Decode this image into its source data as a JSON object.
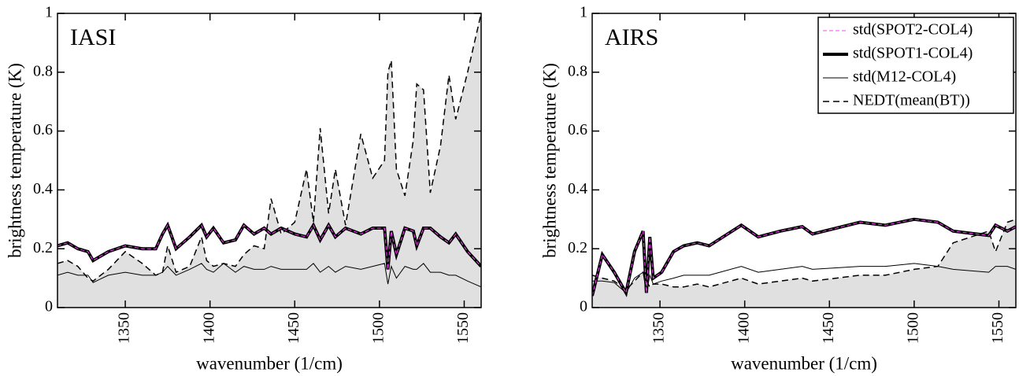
{
  "chart_data": [
    {
      "type": "line",
      "annotation": "IASI",
      "xlabel": "wavenumber (1/cm)",
      "ylabel": "brightness temperature (K)",
      "xlim": [
        1310,
        1560
      ],
      "xticks": [
        1350,
        1400,
        1450,
        1500,
        1550
      ],
      "ylim": [
        0,
        1
      ],
      "yticks": [
        0,
        0.2,
        0.4,
        0.6,
        0.8,
        1
      ],
      "x": [
        1310,
        1316,
        1322,
        1328,
        1331,
        1340,
        1350,
        1360,
        1368,
        1372,
        1375,
        1380,
        1388,
        1395,
        1398,
        1402,
        1408,
        1415,
        1420,
        1426,
        1432,
        1436,
        1442,
        1450,
        1457,
        1461,
        1465,
        1470,
        1474,
        1480,
        1489,
        1496,
        1503,
        1505,
        1507,
        1510,
        1515,
        1520,
        1522,
        1526,
        1530,
        1536,
        1541,
        1545,
        1552,
        1560
      ],
      "series": [
        {
          "color": "#ff44ff",
          "line_style": "dashed",
          "line_width": 1,
          "values": [
            0.21,
            0.22,
            0.2,
            0.19,
            0.16,
            0.19,
            0.21,
            0.2,
            0.2,
            0.25,
            0.28,
            0.2,
            0.24,
            0.28,
            0.24,
            0.27,
            0.22,
            0.23,
            0.28,
            0.25,
            0.27,
            0.25,
            0.27,
            0.25,
            0.24,
            0.28,
            0.23,
            0.28,
            0.24,
            0.27,
            0.25,
            0.27,
            0.27,
            0.13,
            0.26,
            0.18,
            0.27,
            0.26,
            0.21,
            0.27,
            0.27,
            0.24,
            0.22,
            0.25,
            0.19,
            0.14
          ]
        },
        {
          "color": "#000000",
          "line_style": "solid",
          "line_width": 4,
          "values": [
            0.21,
            0.22,
            0.2,
            0.19,
            0.16,
            0.19,
            0.21,
            0.2,
            0.2,
            0.25,
            0.28,
            0.2,
            0.24,
            0.28,
            0.24,
            0.27,
            0.22,
            0.23,
            0.28,
            0.25,
            0.27,
            0.25,
            0.27,
            0.25,
            0.24,
            0.28,
            0.23,
            0.28,
            0.24,
            0.27,
            0.25,
            0.27,
            0.27,
            0.13,
            0.26,
            0.18,
            0.27,
            0.26,
            0.21,
            0.27,
            0.27,
            0.24,
            0.22,
            0.25,
            0.19,
            0.14
          ]
        },
        {
          "color": "#000000",
          "line_style": "solid",
          "line_width": 1,
          "values": [
            0.11,
            0.12,
            0.11,
            0.11,
            0.085,
            0.11,
            0.12,
            0.11,
            0.11,
            0.12,
            0.14,
            0.11,
            0.13,
            0.15,
            0.13,
            0.12,
            0.15,
            0.12,
            0.14,
            0.13,
            0.13,
            0.14,
            0.13,
            0.13,
            0.13,
            0.15,
            0.12,
            0.14,
            0.12,
            0.14,
            0.13,
            0.14,
            0.15,
            0.08,
            0.14,
            0.1,
            0.14,
            0.13,
            0.13,
            0.15,
            0.12,
            0.12,
            0.11,
            0.11,
            0.09,
            0.07
          ]
        },
        {
          "color": "#000000",
          "line_style": "dashed",
          "line_width": 1.5,
          "fill": "#e0e0e0",
          "values": [
            0.15,
            0.16,
            0.14,
            0.1,
            0.09,
            0.13,
            0.19,
            0.15,
            0.11,
            0.12,
            0.21,
            0.12,
            0.14,
            0.24,
            0.16,
            0.14,
            0.15,
            0.14,
            0.18,
            0.21,
            0.2,
            0.37,
            0.25,
            0.29,
            0.47,
            0.29,
            0.61,
            0.32,
            0.47,
            0.28,
            0.59,
            0.44,
            0.5,
            0.8,
            0.84,
            0.47,
            0.38,
            0.57,
            0.76,
            0.74,
            0.39,
            0.55,
            0.79,
            0.64,
            0.8,
            1
          ]
        }
      ]
    },
    {
      "type": "line",
      "annotation": "AIRS",
      "xlabel": "wavenumber (1/cm)",
      "ylabel": "brightness temperature (K)",
      "xlim": [
        1310,
        1560
      ],
      "xticks": [
        1350,
        1400,
        1450,
        1500,
        1550
      ],
      "ylim": [
        0,
        1
      ],
      "yticks": [
        0,
        0.2,
        0.4,
        0.6,
        0.8,
        1
      ],
      "legend": "upper right",
      "x": [
        1310,
        1316,
        1323,
        1330,
        1335,
        1340,
        1342,
        1344,
        1346,
        1351,
        1358,
        1364,
        1372,
        1379,
        1398,
        1408,
        1421,
        1434,
        1440,
        1468,
        1483,
        1500,
        1514,
        1523,
        1544,
        1548,
        1555,
        1560
      ],
      "series": [
        {
          "name": "std(SPOT2-COL4)",
          "color": "#ff44ff",
          "line_style": "dashed",
          "line_width": 1,
          "values": [
            0.04,
            0.18,
            0.12,
            0.05,
            0.19,
            0.26,
            0.05,
            0.24,
            0.1,
            0.12,
            0.19,
            0.21,
            0.22,
            0.21,
            0.28,
            0.24,
            0.26,
            0.275,
            0.25,
            0.29,
            0.28,
            0.3,
            0.29,
            0.26,
            0.245,
            0.28,
            0.26,
            0.275
          ]
        },
        {
          "name": "std(SPOT1-COL4)",
          "color": "#000000",
          "line_style": "solid",
          "line_width": 4,
          "values": [
            0.04,
            0.18,
            0.12,
            0.05,
            0.19,
            0.26,
            0.05,
            0.24,
            0.1,
            0.12,
            0.19,
            0.21,
            0.22,
            0.21,
            0.28,
            0.24,
            0.26,
            0.275,
            0.25,
            0.29,
            0.28,
            0.3,
            0.29,
            0.26,
            0.245,
            0.28,
            0.26,
            0.275
          ]
        },
        {
          "name": "std(M12-COL4)",
          "color": "#000000",
          "line_style": "solid",
          "line_width": 1,
          "values": [
            0.09,
            0.09,
            0.085,
            0.05,
            0.1,
            0.12,
            0.05,
            0.11,
            0.08,
            0.09,
            0.1,
            0.11,
            0.11,
            0.11,
            0.14,
            0.12,
            0.13,
            0.14,
            0.13,
            0.14,
            0.14,
            0.15,
            0.14,
            0.13,
            0.12,
            0.14,
            0.14,
            0.13
          ]
        },
        {
          "name": "NEDT(mean(BT))",
          "color": "#000000",
          "line_style": "dashed",
          "line_width": 1.5,
          "fill": "#e0e0e0",
          "values": [
            0.11,
            0.1,
            0.09,
            0.06,
            0.09,
            0.12,
            0.09,
            0.07,
            0.08,
            0.08,
            0.07,
            0.07,
            0.08,
            0.07,
            0.1,
            0.08,
            0.09,
            0.1,
            0.09,
            0.11,
            0.11,
            0.13,
            0.14,
            0.22,
            0.26,
            0.19,
            0.29,
            0.3
          ]
        }
      ]
    }
  ]
}
